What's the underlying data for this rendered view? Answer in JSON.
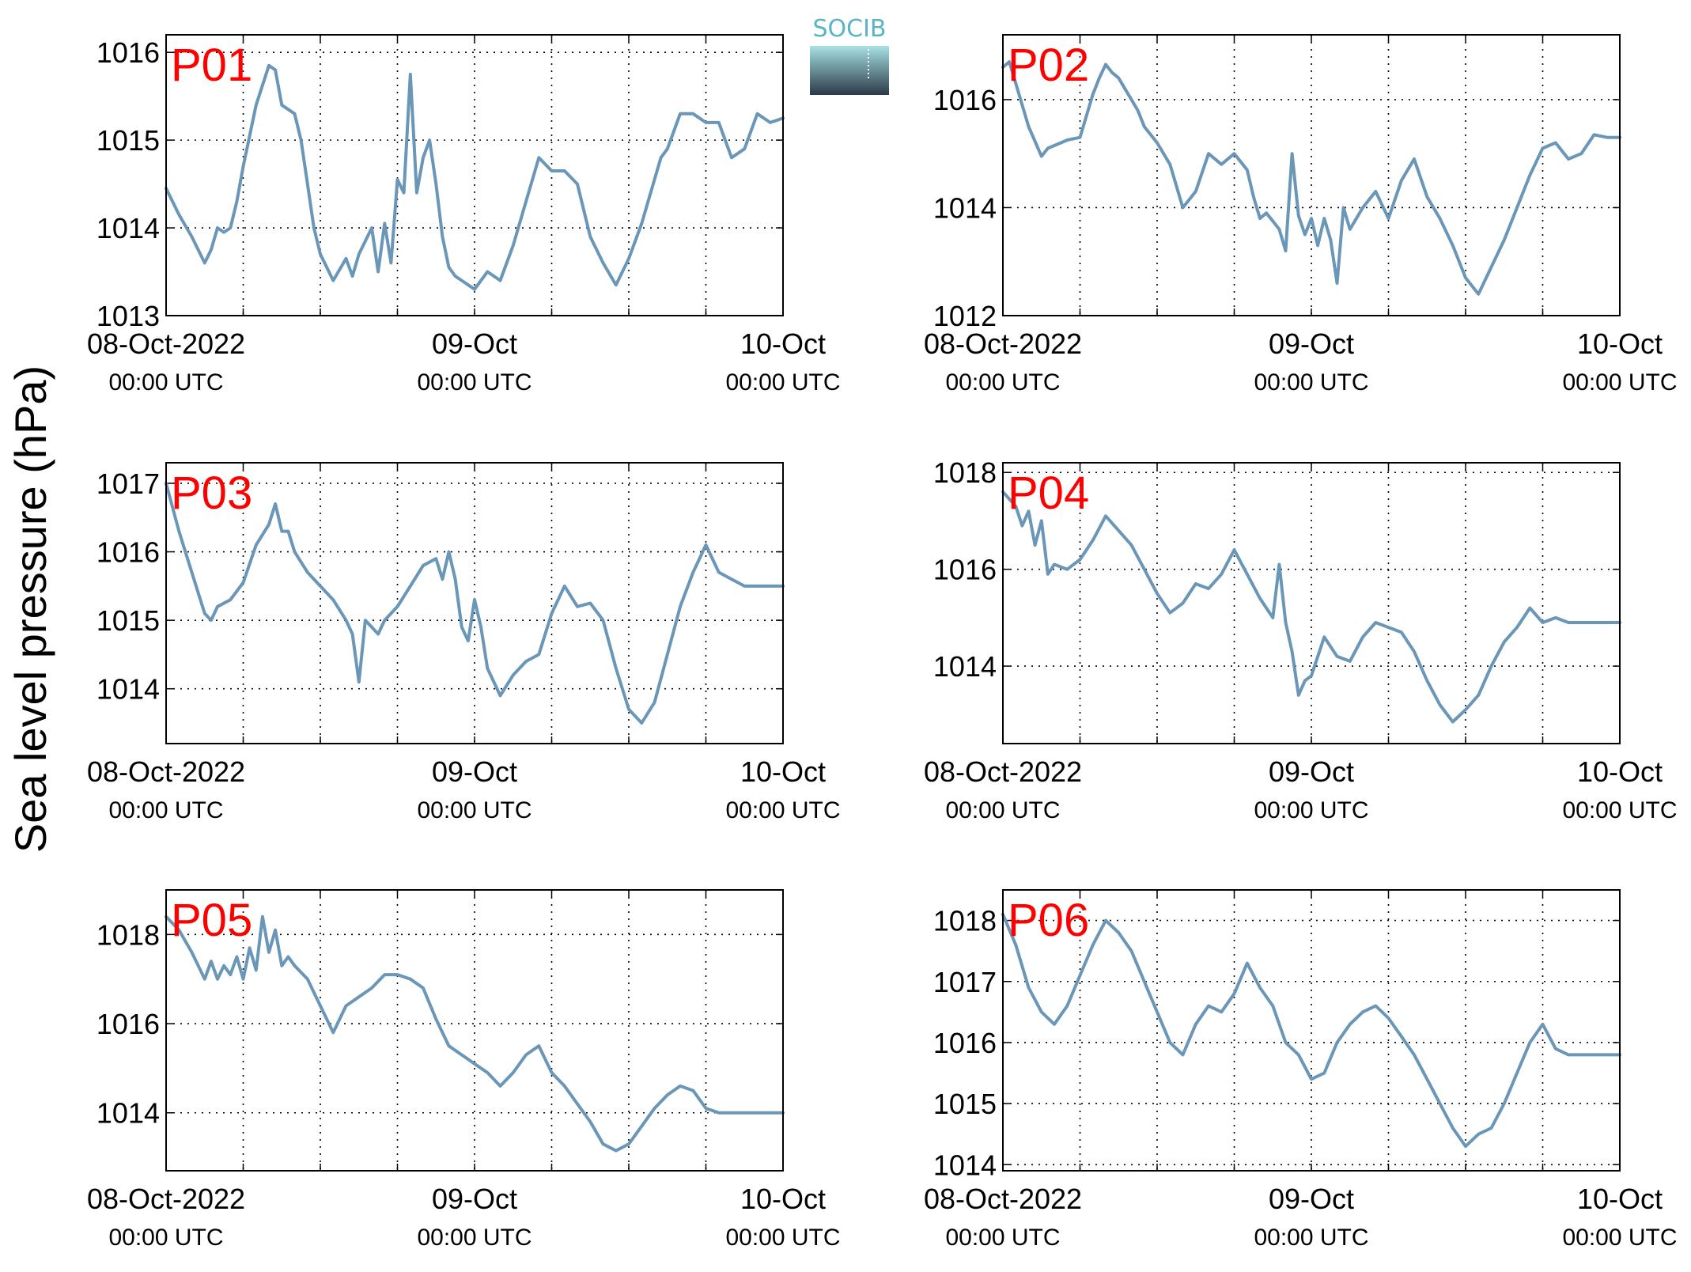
{
  "ylabel": "Sea level pressure (hPa)",
  "logo": {
    "text": "SOCIB"
  },
  "colors": {
    "line": "#6a96b8",
    "panel_label": "#ff0000",
    "grid": "#000000"
  },
  "x_ticks": [
    {
      "t": 0,
      "label": "08-Oct-2022",
      "sub": "00:00 UTC"
    },
    {
      "t": 24,
      "label": "09-Oct",
      "sub": "00:00 UTC"
    },
    {
      "t": 48,
      "label": "10-Oct",
      "sub": "00:00 UTC"
    }
  ],
  "chart_data": [
    {
      "type": "line",
      "panel": "P01",
      "xlim": [
        "08-Oct-2022 00:00 UTC",
        "10-Oct-2022 00:00 UTC"
      ],
      "ylim": [
        1013,
        1016.2
      ],
      "yticks": [
        1013,
        1014,
        1015,
        1016
      ],
      "grid": true,
      "series": [
        {
          "x": [
            0,
            1,
            2,
            3,
            3.5,
            4,
            4.5,
            5,
            5.5,
            6,
            7,
            8,
            8.5,
            9,
            9.5,
            10,
            10.5,
            11,
            11.5,
            12,
            13,
            14,
            14.5,
            15,
            15.5,
            16,
            16.5,
            17,
            17.5,
            18,
            18.5,
            19,
            19.5,
            20,
            20.5,
            21,
            21.5,
            22,
            22.5,
            23,
            24,
            25,
            26,
            27,
            28,
            29,
            30,
            31,
            32,
            33,
            34,
            35,
            36,
            37,
            38,
            38.5,
            39,
            40,
            41,
            42,
            43,
            44,
            45,
            46,
            47,
            48
          ],
          "y": [
            1014.45,
            1014.15,
            1013.9,
            1013.6,
            1013.75,
            1014.0,
            1013.95,
            1014.0,
            1014.3,
            1014.7,
            1015.4,
            1015.85,
            1015.8,
            1015.4,
            1015.35,
            1015.3,
            1015.0,
            1014.5,
            1014.0,
            1013.7,
            1013.4,
            1013.65,
            1013.45,
            1013.7,
            1013.85,
            1014.0,
            1013.5,
            1014.05,
            1013.6,
            1014.55,
            1014.4,
            1015.75,
            1014.4,
            1014.8,
            1015.0,
            1014.5,
            1013.9,
            1013.55,
            1013.45,
            1013.4,
            1013.3,
            1013.5,
            1013.4,
            1013.8,
            1014.3,
            1014.8,
            1014.65,
            1014.65,
            1014.5,
            1013.9,
            1013.6,
            1013.35,
            1013.65,
            1014.05,
            1014.55,
            1014.8,
            1014.9,
            1015.3,
            1015.3,
            1015.2,
            1015.2,
            1014.8,
            1014.9,
            1015.3,
            1015.2,
            1015.25
          ]
        }
      ]
    },
    {
      "type": "line",
      "panel": "P02",
      "xlim": [
        "08-Oct-2022 00:00 UTC",
        "10-Oct-2022 00:00 UTC"
      ],
      "ylim": [
        1012,
        1017.2
      ],
      "yticks": [
        1012,
        1014,
        1016
      ],
      "grid": true,
      "series": [
        {
          "x": [
            0,
            0.5,
            1,
            2,
            3,
            3.5,
            4,
            5,
            6,
            7,
            7.5,
            8,
            8.5,
            9,
            9.5,
            10,
            10.5,
            11,
            12,
            13,
            14,
            15,
            16,
            17,
            18,
            19,
            19.5,
            20,
            20.5,
            21,
            21.5,
            22,
            22.5,
            23,
            23.5,
            24,
            24.5,
            25,
            25.5,
            26,
            26.5,
            27,
            28,
            29,
            30,
            31,
            32,
            33,
            34,
            35,
            36,
            37,
            38,
            39,
            40,
            41,
            42,
            43,
            44,
            45,
            46,
            47,
            48
          ],
          "y": [
            1016.6,
            1016.7,
            1016.3,
            1015.5,
            1014.95,
            1015.1,
            1015.15,
            1015.25,
            1015.3,
            1016.1,
            1016.4,
            1016.65,
            1016.5,
            1016.4,
            1016.2,
            1016.0,
            1015.8,
            1015.5,
            1015.2,
            1014.8,
            1014.0,
            1014.3,
            1015.0,
            1014.8,
            1015.0,
            1014.7,
            1014.2,
            1013.8,
            1013.9,
            1013.75,
            1013.6,
            1013.2,
            1015.0,
            1013.85,
            1013.5,
            1013.8,
            1013.3,
            1013.8,
            1013.4,
            1012.6,
            1014.0,
            1013.6,
            1014.0,
            1014.3,
            1013.8,
            1014.5,
            1014.9,
            1014.2,
            1013.8,
            1013.3,
            1012.7,
            1012.4,
            1012.9,
            1013.4,
            1014.0,
            1014.6,
            1015.1,
            1015.2,
            1014.9,
            1015.0,
            1015.35,
            1015.3,
            1015.3
          ]
        }
      ]
    },
    {
      "type": "line",
      "panel": "P03",
      "xlim": [
        "08-Oct-2022 00:00 UTC",
        "10-Oct-2022 00:00 UTC"
      ],
      "ylim": [
        1013.2,
        1017.3
      ],
      "yticks": [
        1014,
        1015,
        1016,
        1017
      ],
      "grid": true,
      "series": [
        {
          "x": [
            0,
            1,
            2,
            3,
            3.5,
            4,
            5,
            6,
            7,
            8,
            8.5,
            9,
            9.5,
            10,
            11,
            12,
            13,
            14,
            14.5,
            15,
            15.5,
            16,
            16.5,
            17,
            18,
            19,
            20,
            21,
            21.5,
            22,
            22.5,
            23,
            23.5,
            24,
            24.5,
            25,
            26,
            27,
            28,
            29,
            30,
            31,
            32,
            33,
            34,
            35,
            36,
            37,
            38,
            39,
            40,
            41,
            42,
            43,
            44,
            45,
            46,
            47,
            48
          ],
          "y": [
            1017.0,
            1016.3,
            1015.7,
            1015.1,
            1015.0,
            1015.2,
            1015.3,
            1015.55,
            1016.1,
            1016.4,
            1016.7,
            1016.3,
            1016.3,
            1016.0,
            1015.7,
            1015.5,
            1015.3,
            1015.0,
            1014.8,
            1014.1,
            1015.0,
            1014.9,
            1014.8,
            1015.0,
            1015.2,
            1015.5,
            1015.8,
            1015.9,
            1015.6,
            1016.0,
            1015.6,
            1014.9,
            1014.7,
            1015.3,
            1014.9,
            1014.3,
            1013.9,
            1014.2,
            1014.4,
            1014.5,
            1015.1,
            1015.5,
            1015.2,
            1015.25,
            1015.0,
            1014.3,
            1013.7,
            1013.5,
            1013.8,
            1014.5,
            1015.2,
            1015.7,
            1016.1,
            1015.7,
            1015.6,
            1015.5,
            1015.5,
            1015.5,
            1015.5
          ]
        }
      ]
    },
    {
      "type": "line",
      "panel": "P04",
      "xlim": [
        "08-Oct-2022 00:00 UTC",
        "10-Oct-2022 00:00 UTC"
      ],
      "ylim": [
        1012.4,
        1018.2
      ],
      "yticks": [
        1014,
        1016,
        1018
      ],
      "grid": true,
      "series": [
        {
          "x": [
            0,
            1,
            1.5,
            2,
            2.5,
            3,
            3.5,
            4,
            5,
            6,
            7,
            8,
            9,
            10,
            11,
            12,
            13,
            14,
            15,
            16,
            17,
            18,
            19,
            20,
            21,
            21.5,
            22,
            22.5,
            23,
            23.5,
            24,
            25,
            26,
            27,
            28,
            29,
            30,
            31,
            32,
            33,
            34,
            35,
            36,
            37,
            38,
            39,
            40,
            41,
            42,
            43,
            44,
            45,
            46,
            47,
            48
          ],
          "y": [
            1017.6,
            1017.3,
            1016.9,
            1017.2,
            1016.5,
            1017.0,
            1015.9,
            1016.1,
            1016.0,
            1016.2,
            1016.6,
            1017.1,
            1016.8,
            1016.5,
            1016.0,
            1015.5,
            1015.1,
            1015.3,
            1015.7,
            1015.6,
            1015.9,
            1016.4,
            1015.9,
            1015.4,
            1015.0,
            1016.1,
            1014.9,
            1014.3,
            1013.4,
            1013.7,
            1013.8,
            1014.6,
            1014.2,
            1014.1,
            1014.6,
            1014.9,
            1014.8,
            1014.7,
            1014.3,
            1013.7,
            1013.2,
            1012.85,
            1013.1,
            1013.4,
            1014.0,
            1014.5,
            1014.8,
            1015.2,
            1014.9,
            1015.0,
            1014.9,
            1014.9,
            1014.9,
            1014.9,
            1014.9
          ]
        }
      ]
    },
    {
      "type": "line",
      "panel": "P05",
      "xlim": [
        "08-Oct-2022 00:00 UTC",
        "10-Oct-2022 00:00 UTC"
      ],
      "ylim": [
        1012.7,
        1019.0
      ],
      "yticks": [
        1014,
        1016,
        1018
      ],
      "grid": true,
      "series": [
        {
          "x": [
            0,
            1,
            2,
            3,
            3.5,
            4,
            4.5,
            5,
            5.5,
            6,
            6.5,
            7,
            7.5,
            8,
            8.5,
            9,
            9.5,
            10,
            11,
            12,
            13,
            14,
            15,
            16,
            17,
            18,
            19,
            20,
            21,
            22,
            23,
            24,
            25,
            26,
            27,
            28,
            29,
            30,
            31,
            32,
            33,
            34,
            35,
            36,
            37,
            38,
            39,
            40,
            41,
            42,
            43,
            44,
            45,
            46,
            47,
            48
          ],
          "y": [
            1018.4,
            1018.1,
            1017.6,
            1017.0,
            1017.4,
            1017.0,
            1017.3,
            1017.1,
            1017.5,
            1017.0,
            1017.7,
            1017.2,
            1018.4,
            1017.6,
            1018.1,
            1017.3,
            1017.5,
            1017.3,
            1017.0,
            1016.4,
            1015.8,
            1016.4,
            1016.6,
            1016.8,
            1017.1,
            1017.1,
            1017.0,
            1016.8,
            1016.1,
            1015.5,
            1015.3,
            1015.1,
            1014.9,
            1014.6,
            1014.9,
            1015.3,
            1015.5,
            1014.9,
            1014.6,
            1014.2,
            1013.8,
            1013.3,
            1013.15,
            1013.3,
            1013.7,
            1014.1,
            1014.4,
            1014.6,
            1014.5,
            1014.1,
            1014.0,
            1014.0,
            1014.0,
            1014.0,
            1014.0,
            1014.0
          ]
        }
      ]
    },
    {
      "type": "line",
      "panel": "P06",
      "xlim": [
        "08-Oct-2022 00:00 UTC",
        "10-Oct-2022 00:00 UTC"
      ],
      "ylim": [
        1013.9,
        1018.5
      ],
      "yticks": [
        1014,
        1015,
        1016,
        1017,
        1018
      ],
      "grid": true,
      "series": [
        {
          "x": [
            0,
            1,
            2,
            3,
            4,
            5,
            6,
            7,
            8,
            9,
            10,
            11,
            12,
            13,
            14,
            15,
            16,
            17,
            18,
            19,
            20,
            21,
            22,
            23,
            24,
            25,
            26,
            27,
            28,
            29,
            30,
            31,
            32,
            33,
            34,
            35,
            36,
            37,
            38,
            39,
            40,
            41,
            42,
            43,
            44,
            45,
            46,
            47,
            48
          ],
          "y": [
            1018.1,
            1017.6,
            1016.9,
            1016.5,
            1016.3,
            1016.6,
            1017.1,
            1017.6,
            1018.0,
            1017.8,
            1017.5,
            1017.0,
            1016.5,
            1016.0,
            1015.8,
            1016.3,
            1016.6,
            1016.5,
            1016.8,
            1017.3,
            1016.9,
            1016.6,
            1016.0,
            1015.8,
            1015.4,
            1015.5,
            1016.0,
            1016.3,
            1016.5,
            1016.6,
            1016.4,
            1016.1,
            1015.8,
            1015.4,
            1015.0,
            1014.6,
            1014.3,
            1014.5,
            1014.6,
            1015.0,
            1015.5,
            1016.0,
            1016.3,
            1015.9,
            1015.8,
            1015.8,
            1015.8,
            1015.8,
            1015.8
          ]
        }
      ]
    }
  ],
  "panels": [
    {
      "label": "P01"
    },
    {
      "label": "P02"
    },
    {
      "label": "P03"
    },
    {
      "label": "P04"
    },
    {
      "label": "P05"
    },
    {
      "label": "P06"
    }
  ]
}
